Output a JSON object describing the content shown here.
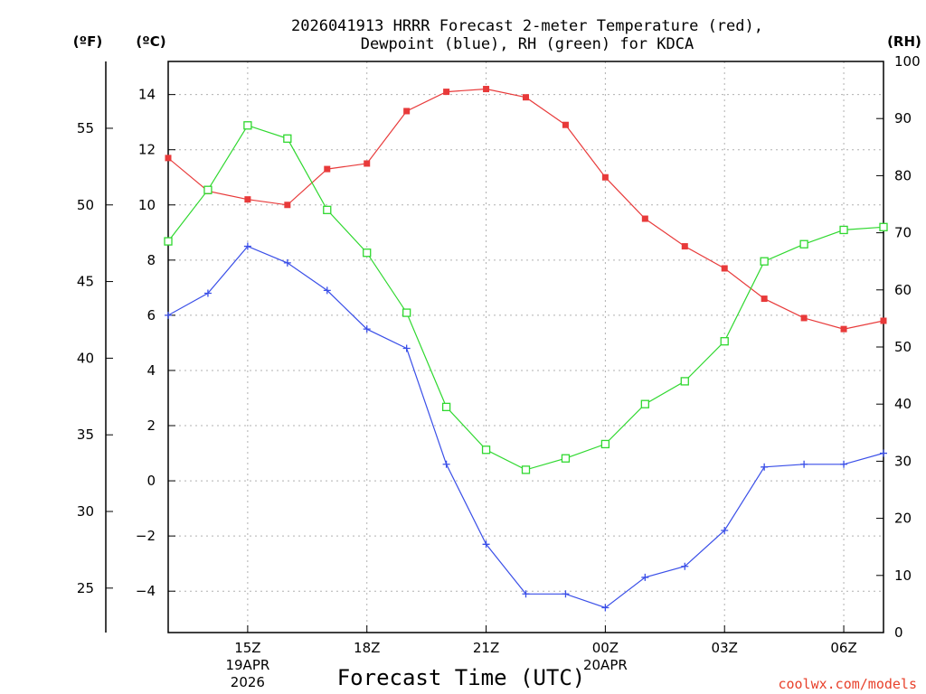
{
  "chart_data": {
    "type": "line",
    "title_line1": "2026041913 HRRR Forecast 2-meter Temperature (red),",
    "title_line2": "Dewpoint (blue), RH (green) for KDCA",
    "xlabel": "Forecast Time (UTC)",
    "credit": "coolwx.com/models",
    "units": {
      "fahrenheit": "(ºF)",
      "celsius": "(ºC)",
      "rh": "(RH)"
    },
    "x_forecast_hours": [
      0,
      1,
      2,
      3,
      4,
      5,
      6,
      7,
      8,
      9,
      10,
      11,
      12,
      13,
      14,
      15,
      16,
      17,
      18
    ],
    "x_range": [
      0,
      18
    ],
    "x_ticks": [
      {
        "hour": 2,
        "label": "15Z",
        "sub1": "19APR",
        "sub2": "2026"
      },
      {
        "hour": 5,
        "label": "18Z",
        "sub1": "",
        "sub2": ""
      },
      {
        "hour": 8,
        "label": "21Z",
        "sub1": "",
        "sub2": ""
      },
      {
        "hour": 11,
        "label": "00Z",
        "sub1": "20APR",
        "sub2": ""
      },
      {
        "hour": 14,
        "label": "03Z",
        "sub1": "",
        "sub2": ""
      },
      {
        "hour": 17,
        "label": "06Z",
        "sub1": "",
        "sub2": ""
      }
    ],
    "ylim_c": [
      -5.5,
      15.2
    ],
    "y_ticks_c": [
      "14",
      "12",
      "10",
      "8",
      "6",
      "4",
      "2",
      "0",
      "−2",
      "−4"
    ],
    "y_ticks_f": [
      "55",
      "50",
      "45",
      "40",
      "35",
      "30",
      "25"
    ],
    "rh_range": [
      0,
      100
    ],
    "rh_ticks": [
      "100",
      "90",
      "80",
      "70",
      "60",
      "50",
      "40",
      "30",
      "20",
      "10",
      "0"
    ],
    "series": [
      {
        "name": "Temperature",
        "unit": "C",
        "color": "#e83a3a",
        "marker": "filled-square",
        "values": [
          11.7,
          10.5,
          10.2,
          10.0,
          11.3,
          11.5,
          13.4,
          14.1,
          14.2,
          13.9,
          12.9,
          11.0,
          9.5,
          8.5,
          7.7,
          6.6,
          5.9,
          5.5,
          5.8
        ]
      },
      {
        "name": "Dewpoint",
        "unit": "C",
        "color": "#3a4fe8",
        "marker": "plus",
        "values": [
          6.0,
          6.8,
          8.5,
          7.9,
          6.9,
          5.5,
          4.8,
          0.6,
          -2.3,
          -4.1,
          -4.1,
          -4.6,
          -3.5,
          -3.1,
          -1.8,
          0.5,
          0.6,
          0.6,
          1.0
        ]
      },
      {
        "name": "RH",
        "unit": "%",
        "color": "#2fd82f",
        "marker": "open-square",
        "values": [
          68.5,
          77.5,
          88.8,
          86.5,
          74.0,
          66.5,
          56.0,
          39.5,
          32.0,
          28.5,
          30.5,
          33.0,
          40.0,
          44.0,
          51.0,
          65.0,
          68.0,
          70.5,
          71.0
        ]
      }
    ]
  }
}
